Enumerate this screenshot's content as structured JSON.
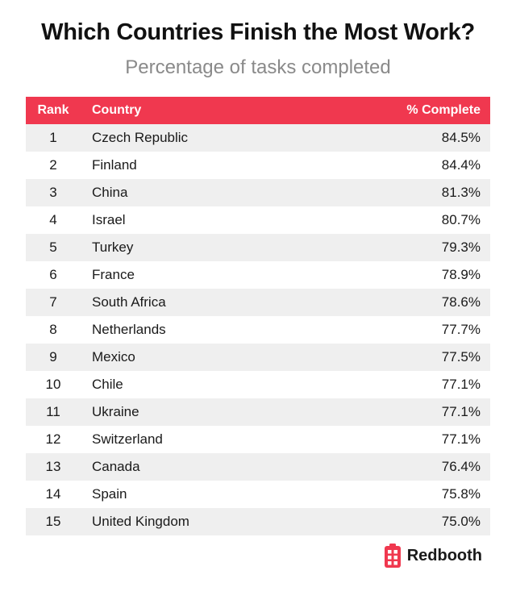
{
  "chart_data": {
    "type": "table",
    "title": "Which Countries Finish the Most Work?",
    "subtitle": "Percentage of tasks completed",
    "columns": [
      "Rank",
      "Country",
      "% Complete"
    ],
    "rows": [
      {
        "rank": "1",
        "country": "Czech Republic",
        "pct": "84.5%"
      },
      {
        "rank": "2",
        "country": "Finland",
        "pct": "84.4%"
      },
      {
        "rank": "3",
        "country": "China",
        "pct": "81.3%"
      },
      {
        "rank": "4",
        "country": "Israel",
        "pct": "80.7%"
      },
      {
        "rank": "5",
        "country": "Turkey",
        "pct": "79.3%"
      },
      {
        "rank": "6",
        "country": "France",
        "pct": "78.9%"
      },
      {
        "rank": "7",
        "country": "South Africa",
        "pct": "78.6%"
      },
      {
        "rank": "8",
        "country": "Netherlands",
        "pct": "77.7%"
      },
      {
        "rank": "9",
        "country": "Mexico",
        "pct": "77.5%"
      },
      {
        "rank": "10",
        "country": "Chile",
        "pct": "77.1%"
      },
      {
        "rank": "11",
        "country": "Ukraine",
        "pct": "77.1%"
      },
      {
        "rank": "12",
        "country": "Switzerland",
        "pct": "77.1%"
      },
      {
        "rank": "13",
        "country": "Canada",
        "pct": "76.4%"
      },
      {
        "rank": "14",
        "country": "Spain",
        "pct": "75.8%"
      },
      {
        "rank": "15",
        "country": "United Kingdom",
        "pct": "75.0%"
      }
    ]
  },
  "brand": {
    "name": "Redbooth",
    "icon": "redbooth-logo-icon",
    "color": "#f0384f"
  },
  "colors": {
    "header_bg": "#f0384f",
    "header_text": "#ffffff",
    "row_alt_bg": "#efefef",
    "subtitle": "#8a8a8a"
  }
}
